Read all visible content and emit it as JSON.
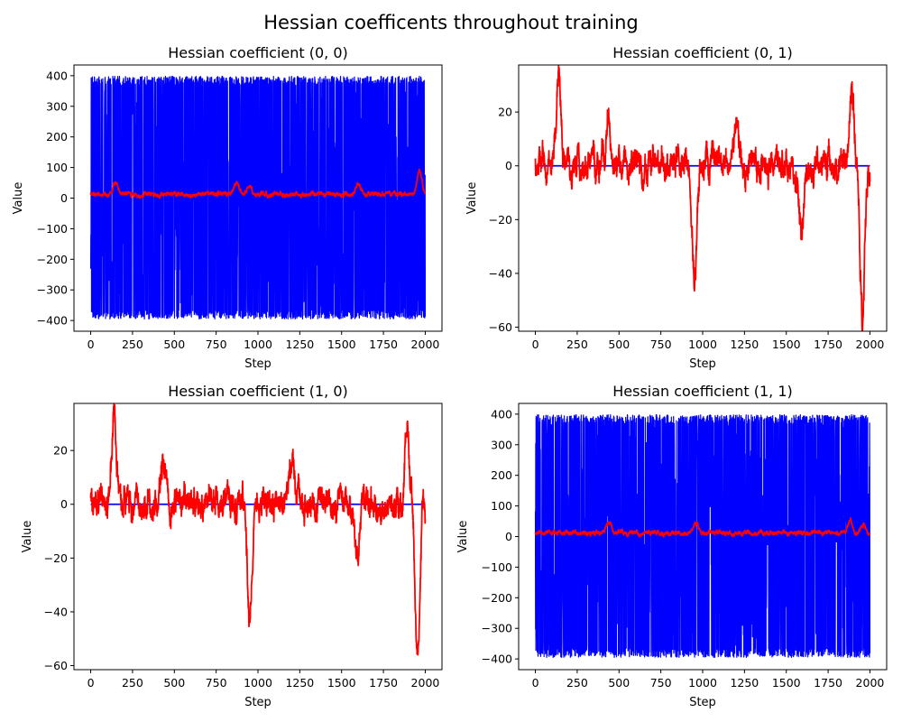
{
  "figure": {
    "title": "Hessian coefficents throughout training"
  },
  "chart_data": [
    {
      "type": "line",
      "title": "Hessian coefficient (0, 0)",
      "xlabel": "Step",
      "ylabel": "Value",
      "xlim": [
        -100,
        2100
      ],
      "ylim": [
        -435,
        435
      ],
      "xticks": [
        0,
        250,
        500,
        750,
        1000,
        1250,
        1500,
        1750,
        2000
      ],
      "yticks": [
        -400,
        -300,
        -200,
        -100,
        0,
        100,
        200,
        300,
        400
      ],
      "grid": false,
      "series": [
        {
          "color": "#0000ff",
          "values": {
            "type": "oscillation",
            "x_start": 0,
            "x_end": 2000,
            "n": 2001,
            "min": -395,
            "max": 398,
            "mean": 0
          }
        },
        {
          "color": "#ff0000",
          "values": {
            "type": "noisy-level",
            "x_start": 0,
            "x_end": 2000,
            "n": 2001,
            "baseline": 12,
            "noise": 5,
            "spikes": [
              [
                145,
                48
              ],
              [
                870,
                50
              ],
              [
                950,
                40
              ],
              [
                1600,
                50
              ],
              [
                1965,
                90
              ]
            ]
          }
        }
      ]
    },
    {
      "type": "line",
      "title": "Hessian coefficient (0, 1)",
      "xlabel": "Step",
      "ylabel": "Value",
      "xlim": [
        -100,
        2100
      ],
      "ylim": [
        -61.5,
        37.5
      ],
      "xticks": [
        0,
        250,
        500,
        750,
        1000,
        1250,
        1500,
        1750,
        2000
      ],
      "yticks": [
        -60,
        -40,
        -20,
        0,
        20
      ],
      "grid": false,
      "series": [
        {
          "color": "#0000ff",
          "values": {
            "type": "constant",
            "x_start": 0,
            "x_end": 2000,
            "value": 0
          }
        },
        {
          "color": "#ff0000",
          "values": {
            "type": "noisy-level",
            "x_start": 0,
            "x_end": 2000,
            "n": 2001,
            "baseline": 0,
            "noise": 4,
            "spikes": [
              [
                140,
                33
              ],
              [
                435,
                18
              ],
              [
                950,
                -41
              ],
              [
                1200,
                17
              ],
              [
                1590,
                -25
              ],
              [
                1890,
                28
              ],
              [
                1955,
                -57
              ]
            ]
          }
        }
      ]
    },
    {
      "type": "line",
      "title": "Hessian coefficient (1, 0)",
      "xlabel": "Step",
      "ylabel": "Value",
      "xlim": [
        -100,
        2100
      ],
      "ylim": [
        -61.5,
        37.5
      ],
      "xticks": [
        0,
        250,
        500,
        750,
        1000,
        1250,
        1500,
        1750,
        2000
      ],
      "yticks": [
        -60,
        -40,
        -20,
        0,
        20
      ],
      "grid": false,
      "series": [
        {
          "color": "#0000ff",
          "values": {
            "type": "constant",
            "x_start": 0,
            "x_end": 2000,
            "value": 0
          }
        },
        {
          "color": "#ff0000",
          "values": {
            "type": "noisy-level",
            "x_start": 0,
            "x_end": 2000,
            "n": 2001,
            "baseline": 0,
            "noise": 4,
            "spikes": [
              [
                140,
                33
              ],
              [
                435,
                18
              ],
              [
                950,
                -41
              ],
              [
                1200,
                17
              ],
              [
                1590,
                -25
              ],
              [
                1890,
                28
              ],
              [
                1955,
                -57
              ]
            ]
          }
        }
      ]
    },
    {
      "type": "line",
      "title": "Hessian coefficient (1, 1)",
      "xlabel": "Step",
      "ylabel": "Value",
      "xlim": [
        -100,
        2100
      ],
      "ylim": [
        -435,
        435
      ],
      "xticks": [
        0,
        250,
        500,
        750,
        1000,
        1250,
        1500,
        1750,
        2000
      ],
      "yticks": [
        -400,
        -300,
        -200,
        -100,
        0,
        100,
        200,
        300,
        400
      ],
      "grid": false,
      "series": [
        {
          "color": "#0000ff",
          "values": {
            "type": "oscillation",
            "x_start": 0,
            "x_end": 2000,
            "n": 2001,
            "min": -395,
            "max": 398,
            "mean": 0
          }
        },
        {
          "color": "#ff0000",
          "values": {
            "type": "noisy-level",
            "x_start": 0,
            "x_end": 2000,
            "n": 2001,
            "baseline": 12,
            "noise": 5,
            "spikes": [
              [
                440,
                55
              ],
              [
                960,
                45
              ],
              [
                1880,
                55
              ],
              [
                1960,
                40
              ]
            ]
          }
        }
      ]
    }
  ]
}
